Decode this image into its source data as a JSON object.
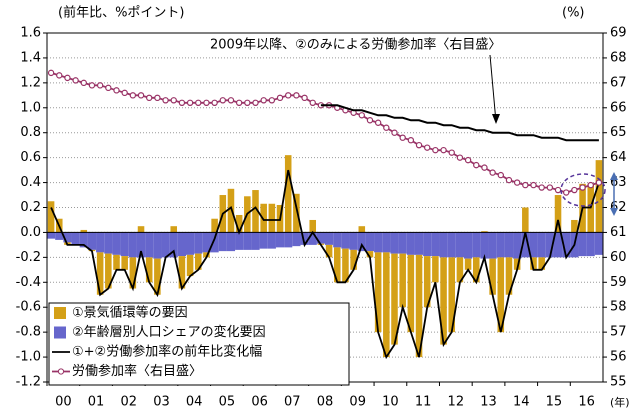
{
  "chart_data": {
    "type": "combo",
    "y_unit_label": "(前年比、%ポイント)",
    "y2_unit_label": "(%)",
    "x_unit_label": "(年)",
    "annotation": "2009年以降、②のみによる労働参加率〈右目盛〉",
    "stacked": true,
    "grid": true,
    "legend": "bottom-left",
    "categories": [
      "00",
      null,
      null,
      null,
      "01",
      null,
      null,
      null,
      "02",
      null,
      null,
      null,
      "03",
      null,
      null,
      null,
      "04",
      null,
      null,
      null,
      "05",
      null,
      null,
      null,
      "06",
      null,
      null,
      null,
      "07",
      null,
      null,
      null,
      "08",
      null,
      null,
      null,
      "09",
      null,
      null,
      null,
      "10",
      null,
      null,
      null,
      "11",
      null,
      null,
      null,
      "12",
      null,
      null,
      null,
      "13",
      null,
      null,
      null,
      "14",
      null,
      null,
      null,
      "15",
      null,
      null,
      null,
      "16",
      null,
      null,
      null
    ],
    "ylim": [
      -1.2,
      1.6
    ],
    "yticks": [
      1.6,
      1.4,
      1.2,
      {
        "value": 1,
        "label": "1.0"
      },
      0.8,
      0.6,
      0.4,
      0.2,
      {
        "value": 0,
        "label": "0.0"
      },
      -0.2,
      -0.4,
      -0.6,
      -0.8,
      {
        "value": -1,
        "label": "-1.0"
      },
      -1.2
    ],
    "y2lim": [
      55,
      69
    ],
    "y2ticks": [
      69,
      68,
      67,
      66,
      65,
      64,
      63,
      62,
      61,
      60,
      59,
      58,
      57,
      56,
      55
    ],
    "series": [
      {
        "name": "①景気循環等の要因",
        "type": "bar",
        "color": "#d4a017",
        "values": [
          0.25,
          0.11,
          -0.02,
          0.0,
          0.02,
          -0.01,
          -0.34,
          -0.28,
          -0.12,
          -0.11,
          -0.25,
          0.05,
          -0.2,
          -0.29,
          0.0,
          0.05,
          -0.26,
          -0.17,
          -0.13,
          -0.04,
          0.11,
          0.3,
          0.35,
          0.14,
          0.29,
          0.34,
          0.23,
          0.23,
          0.22,
          0.62,
          0.31,
          0.0,
          0.1,
          -0.01,
          -0.1,
          -0.28,
          -0.27,
          -0.16,
          0.05,
          -0.05,
          -0.64,
          -0.84,
          -0.73,
          -0.43,
          -0.62,
          -0.82,
          -0.41,
          -0.21,
          -0.7,
          -0.6,
          -0.2,
          -0.09,
          -0.2,
          0.01,
          -0.29,
          -0.6,
          -0.3,
          -0.09,
          0.2,
          -0.1,
          -0.1,
          0.0,
          0.3,
          0.0,
          0.1,
          0.39,
          0.39,
          0.58
        ]
      },
      {
        "name": "②年齢層別人口シェアの変化要因",
        "type": "bar",
        "color": "#6666cc",
        "values": [
          -0.05,
          -0.06,
          -0.08,
          -0.1,
          -0.12,
          -0.14,
          -0.16,
          -0.17,
          -0.18,
          -0.19,
          -0.2,
          -0.2,
          -0.2,
          -0.21,
          -0.2,
          -0.2,
          -0.19,
          -0.18,
          -0.17,
          -0.16,
          -0.16,
          -0.15,
          -0.15,
          -0.14,
          -0.14,
          -0.14,
          -0.13,
          -0.13,
          -0.12,
          -0.12,
          -0.11,
          -0.1,
          -0.1,
          -0.09,
          -0.1,
          -0.12,
          -0.13,
          -0.14,
          -0.15,
          -0.15,
          -0.16,
          -0.16,
          -0.17,
          -0.17,
          -0.18,
          -0.18,
          -0.19,
          -0.19,
          -0.2,
          -0.2,
          -0.2,
          -0.21,
          -0.2,
          -0.21,
          -0.21,
          -0.2,
          -0.2,
          -0.21,
          -0.2,
          -0.2,
          -0.2,
          -0.2,
          -0.2,
          -0.2,
          -0.2,
          -0.19,
          -0.19,
          -0.18
        ]
      },
      {
        "name": "①+②労働参加率の前年比変化幅",
        "type": "line",
        "color": "#000000",
        "values": [
          0.2,
          0.05,
          -0.1,
          -0.1,
          -0.1,
          -0.15,
          -0.5,
          -0.45,
          -0.3,
          -0.3,
          -0.45,
          -0.15,
          -0.4,
          -0.5,
          -0.2,
          -0.15,
          -0.45,
          -0.35,
          -0.3,
          -0.2,
          -0.05,
          0.15,
          0.2,
          0.0,
          0.15,
          0.2,
          0.1,
          0.1,
          0.1,
          0.5,
          0.2,
          -0.1,
          0.0,
          -0.1,
          -0.2,
          -0.4,
          -0.4,
          -0.3,
          -0.1,
          -0.2,
          -0.8,
          -1.0,
          -0.9,
          -0.6,
          -0.8,
          -1.0,
          -0.6,
          -0.4,
          -0.9,
          -0.8,
          -0.4,
          -0.3,
          -0.4,
          -0.2,
          -0.5,
          -0.8,
          -0.5,
          -0.3,
          0.0,
          -0.3,
          -0.3,
          -0.2,
          0.1,
          -0.2,
          -0.1,
          0.2,
          0.2,
          0.4
        ]
      },
      {
        "name": "労働参加率〈右目盛〉",
        "type": "line",
        "axis": "y2",
        "markers": true,
        "color": "#993366",
        "values": [
          67.4,
          67.3,
          67.2,
          67.1,
          67.0,
          66.9,
          66.9,
          66.8,
          66.7,
          66.6,
          66.5,
          66.5,
          66.4,
          66.4,
          66.3,
          66.3,
          66.2,
          66.2,
          66.2,
          66.2,
          66.2,
          66.3,
          66.3,
          66.2,
          66.2,
          66.2,
          66.3,
          66.3,
          66.4,
          66.5,
          66.5,
          66.4,
          66.2,
          66.1,
          66.1,
          66.0,
          65.9,
          65.8,
          65.7,
          65.5,
          65.4,
          65.2,
          65.0,
          64.8,
          64.7,
          64.5,
          64.4,
          64.3,
          64.3,
          64.2,
          64.0,
          63.9,
          63.7,
          63.6,
          63.4,
          63.3,
          63.1,
          63.0,
          62.9,
          62.9,
          62.8,
          62.8,
          62.7,
          62.6,
          62.7,
          62.8,
          62.9,
          63.0
        ]
      },
      {
        "type": "line",
        "axis": "y2",
        "color": "#000000",
        "width": 2,
        "values": [
          null,
          null,
          null,
          null,
          null,
          null,
          null,
          null,
          null,
          null,
          null,
          null,
          null,
          null,
          null,
          null,
          null,
          null,
          null,
          null,
          null,
          null,
          null,
          null,
          null,
          null,
          null,
          null,
          null,
          null,
          null,
          null,
          null,
          66.1,
          66.1,
          66.1,
          66.0,
          65.9,
          65.9,
          65.8,
          65.7,
          65.7,
          65.6,
          65.6,
          65.5,
          65.5,
          65.4,
          65.4,
          65.3,
          65.3,
          65.2,
          65.2,
          65.1,
          65.1,
          65.0,
          65.0,
          65.0,
          64.9,
          64.9,
          64.9,
          64.8,
          64.8,
          64.8,
          64.7,
          64.7,
          64.7,
          64.7,
          64.7
        ]
      }
    ]
  }
}
